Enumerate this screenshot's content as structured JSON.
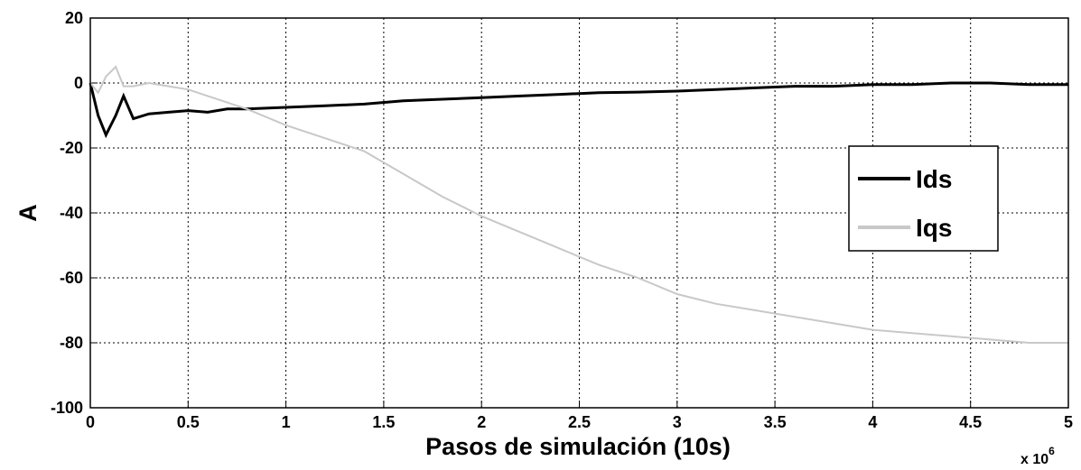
{
  "chart_data": {
    "type": "line",
    "xlabel": "Pasos de simulación (10s)",
    "ylabel": "A",
    "x_multiplier": {
      "base": "x 10",
      "exponent": "6"
    },
    "x": [
      0,
      0.04,
      0.08,
      0.13,
      0.17,
      0.22,
      0.3,
      0.4,
      0.5,
      0.6,
      0.7,
      0.8,
      1.0,
      1.2,
      1.4,
      1.6,
      1.8,
      2.0,
      2.2,
      2.4,
      2.6,
      2.8,
      3.0,
      3.2,
      3.4,
      3.6,
      3.8,
      4.0,
      4.2,
      4.4,
      4.6,
      4.8,
      5.0
    ],
    "series": [
      {
        "name": "Ids",
        "color": "#000000",
        "values": [
          0,
          -10,
          -16,
          -10,
          -4,
          -11,
          -9.5,
          -9,
          -8.5,
          -9,
          -8,
          -8,
          -7.5,
          -7,
          -6.5,
          -5.5,
          -5,
          -4.5,
          -4,
          -3.5,
          -3,
          -2.8,
          -2.5,
          -2,
          -1.5,
          -1,
          -1,
          -0.5,
          -0.5,
          0,
          0,
          -0.5,
          -0.5
        ]
      },
      {
        "name": "Iqs",
        "color": "#c8c8c8",
        "values": [
          0,
          -3,
          2,
          5,
          -1,
          -1,
          0,
          -1,
          -2,
          -4,
          -6,
          -8,
          -13,
          -17,
          -21,
          -28,
          -35,
          -41,
          -46,
          -51,
          -56,
          -60,
          -65,
          -68,
          -70,
          -72,
          -74,
          -76,
          -77,
          -78,
          -79,
          -80,
          -80
        ]
      }
    ],
    "xlim": [
      0,
      5
    ],
    "xticks": [
      0,
      0.5,
      1,
      1.5,
      2,
      2.5,
      3,
      3.5,
      4,
      4.5,
      5
    ],
    "ylim": [
      -100,
      20
    ],
    "yticks": [
      -100,
      -80,
      -60,
      -40,
      -20,
      0,
      20
    ],
    "grid": true,
    "legend": "east"
  }
}
